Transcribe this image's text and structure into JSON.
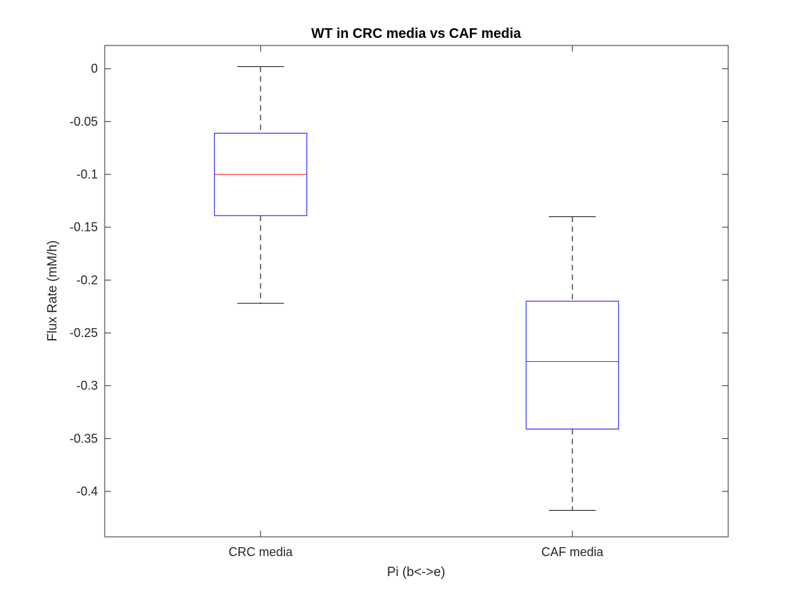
{
  "chart_data": {
    "type": "boxplot",
    "title": "WT in CRC media vs CAF media",
    "xlabel": "Pi (b<->e)",
    "ylabel": "Flux Rate (mM/h)",
    "categories": [
      "CRC media",
      "CAF media"
    ],
    "ylim": [
      -0.443,
      0.022
    ],
    "yticks": [
      0,
      -0.05,
      -0.1,
      -0.15,
      -0.2,
      -0.25,
      -0.3,
      -0.35,
      -0.4
    ],
    "ytick_labels": [
      "0",
      "-0.05",
      "-0.1",
      "-0.15",
      "-0.2",
      "-0.25",
      "-0.3",
      "-0.35",
      "-0.4"
    ],
    "boxes": [
      {
        "category": "CRC media",
        "whisker_high": 0.002,
        "q3": -0.061,
        "median": -0.1,
        "q1": -0.139,
        "whisker_low": -0.222
      },
      {
        "category": "CAF media",
        "whisker_high": -0.14,
        "q3": -0.22,
        "median": -0.277,
        "q1": -0.341,
        "whisker_low": -0.418
      }
    ],
    "grid": false,
    "colors": {
      "box": "#0000ff",
      "median": "#ff0000",
      "whisker": "#000000",
      "axes": "#262626"
    }
  }
}
